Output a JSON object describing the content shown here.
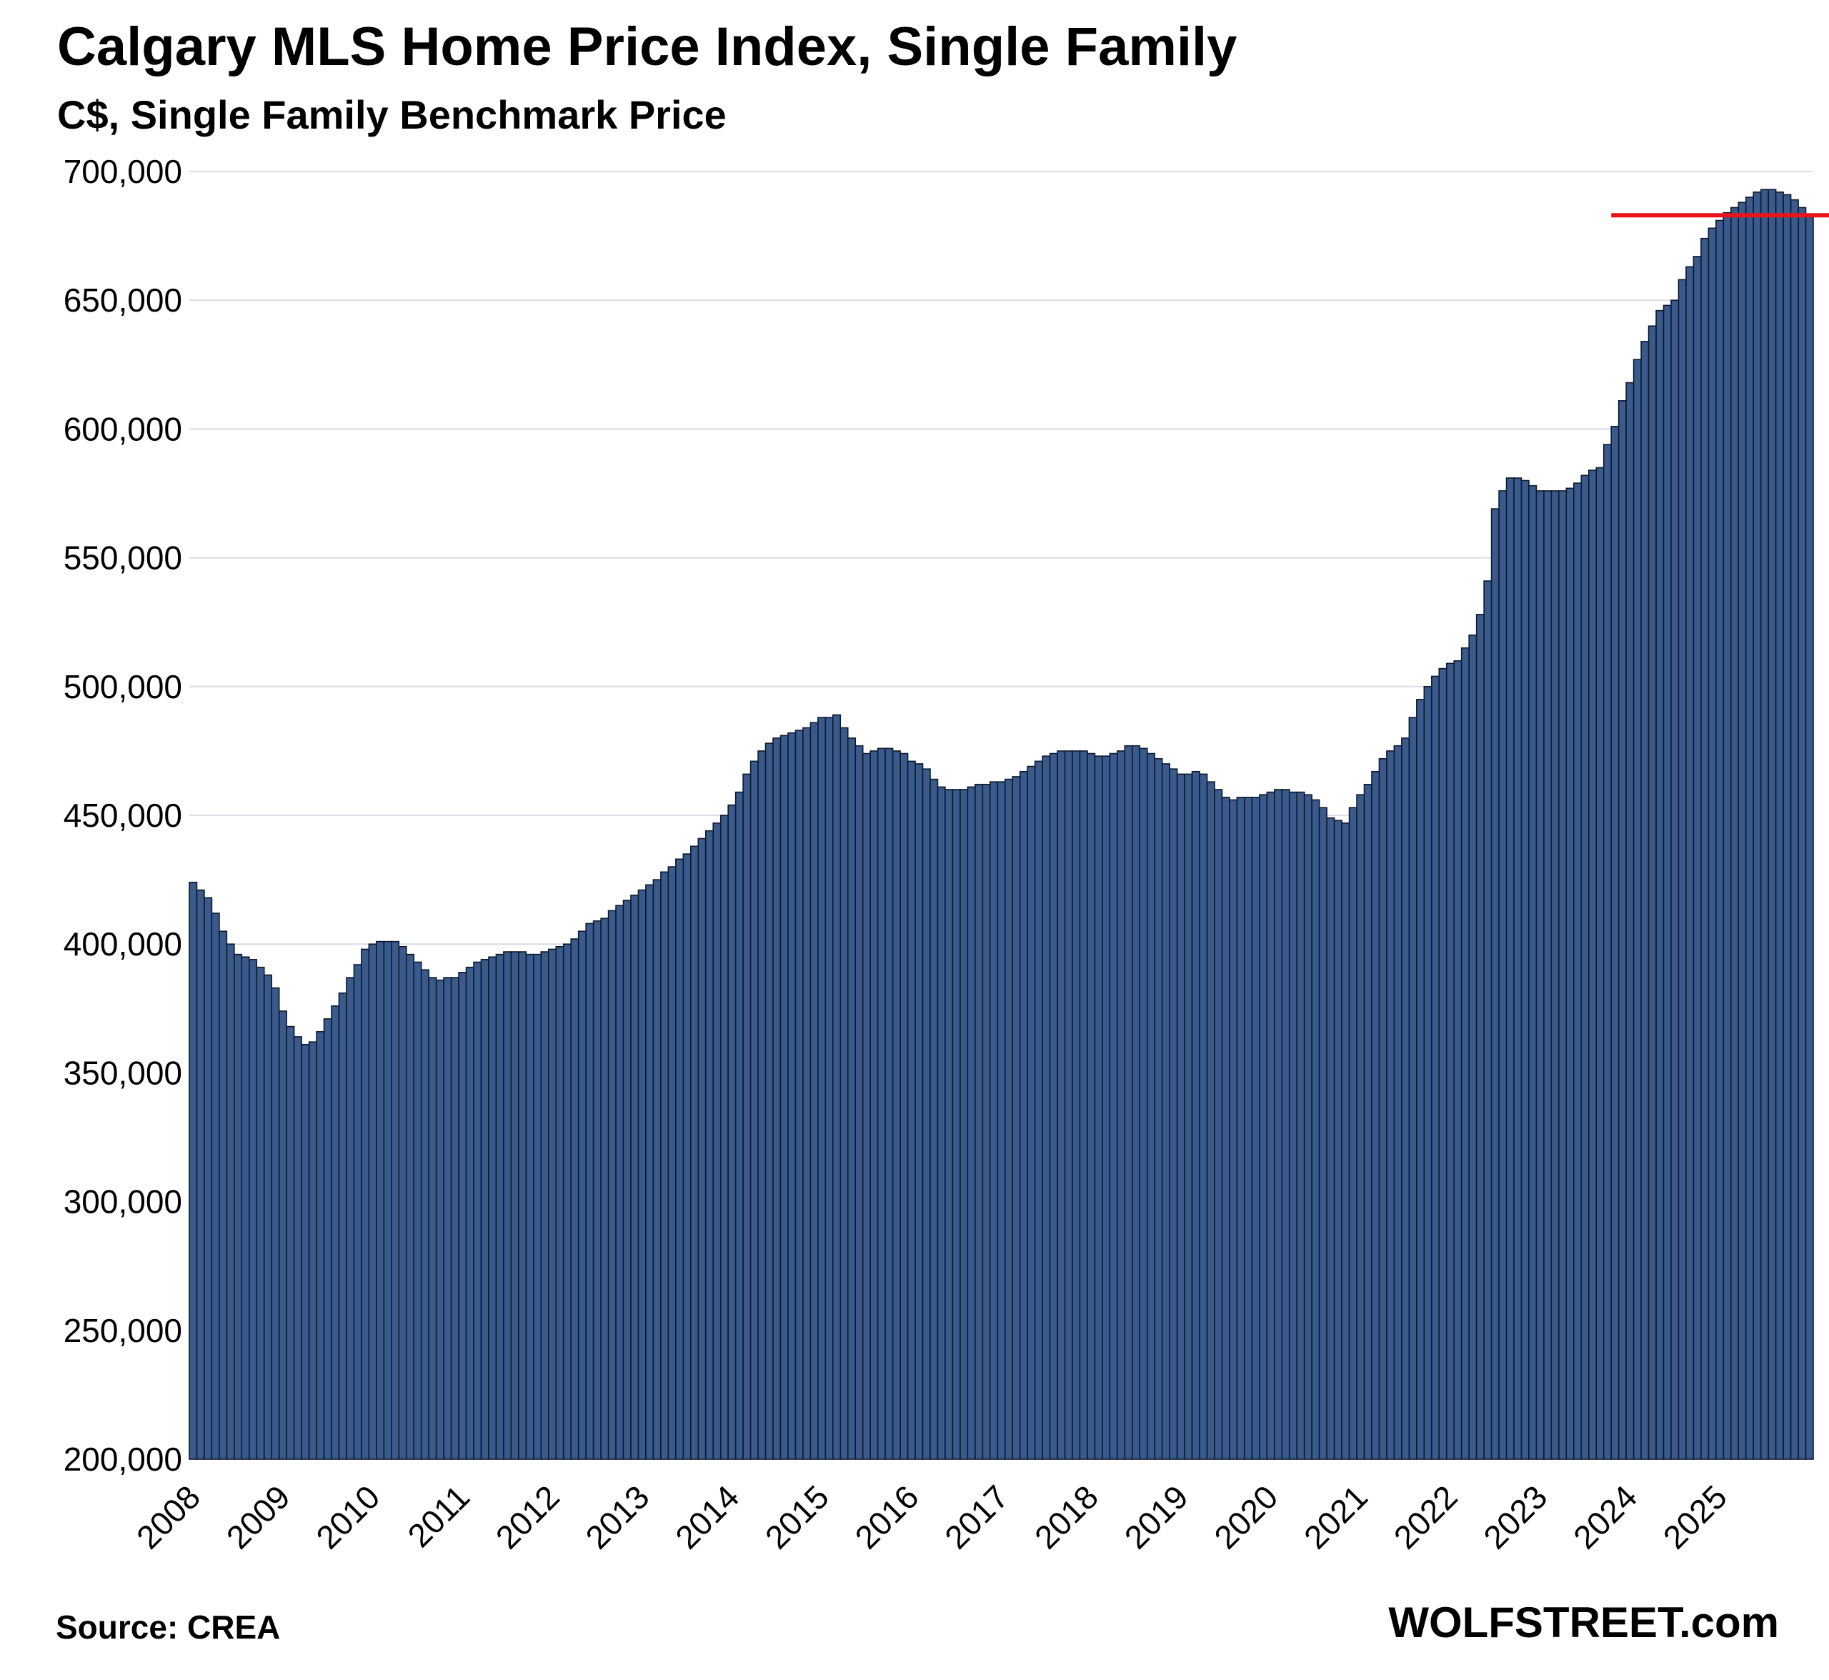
{
  "chart_data": {
    "type": "bar",
    "title": "Calgary MLS Home Price Index, Single Family",
    "subtitle": "C$, Single Family Benchmark Price",
    "xlabel": "",
    "ylabel": "",
    "ylim": [
      200000,
      700000
    ],
    "y_ticks": [
      "200,000",
      "250,000",
      "300,000",
      "350,000",
      "400,000",
      "450,000",
      "500,000",
      "550,000",
      "600,000",
      "650,000",
      "700,000"
    ],
    "y_tick_values": [
      200000,
      250000,
      300000,
      350000,
      400000,
      450000,
      500000,
      550000,
      600000,
      650000,
      700000
    ],
    "x_tick_labels": [
      "2008",
      "2009",
      "2010",
      "2011",
      "2012",
      "2013",
      "2014",
      "2015",
      "2016",
      "2017",
      "2018",
      "2019",
      "2020",
      "2021",
      "2022",
      "2023",
      "2024",
      "2025"
    ],
    "grid": "horizontal",
    "legend": "none",
    "bar_color": "#3a5a8c",
    "bar_edge_color": "#0d1a2e",
    "reference_line": {
      "value": 683000,
      "color": "#e8141c"
    },
    "x_start": "2008-01",
    "x_end": "2025-06",
    "values": [
      424000,
      421000,
      418000,
      412000,
      405000,
      400000,
      396000,
      395000,
      394000,
      391000,
      388000,
      383000,
      374000,
      368000,
      364000,
      361000,
      362000,
      366000,
      371000,
      376000,
      381000,
      387000,
      392000,
      398000,
      400000,
      401000,
      401000,
      401000,
      399000,
      396000,
      393000,
      390000,
      387000,
      386000,
      387000,
      387000,
      389000,
      391000,
      393000,
      394000,
      395000,
      396000,
      397000,
      397000,
      397000,
      396000,
      396000,
      397000,
      398000,
      399000,
      400000,
      402000,
      405000,
      408000,
      409000,
      410000,
      413000,
      415000,
      417000,
      419000,
      421000,
      423000,
      425000,
      428000,
      430000,
      433000,
      435000,
      438000,
      441000,
      444000,
      447000,
      450000,
      454000,
      459000,
      466000,
      471000,
      475000,
      478000,
      480000,
      481000,
      482000,
      483000,
      484000,
      486000,
      488000,
      488000,
      489000,
      484000,
      480000,
      477000,
      474000,
      475000,
      476000,
      476000,
      475000,
      474000,
      471000,
      470000,
      468000,
      464000,
      461000,
      460000,
      460000,
      460000,
      461000,
      462000,
      462000,
      463000,
      463000,
      464000,
      465000,
      467000,
      469000,
      471000,
      473000,
      474000,
      475000,
      475000,
      475000,
      475000,
      474000,
      473000,
      473000,
      474000,
      475000,
      477000,
      477000,
      476000,
      474000,
      472000,
      470000,
      468000,
      466000,
      466000,
      467000,
      466000,
      463000,
      460000,
      457000,
      456000,
      457000,
      457000,
      457000,
      458000,
      459000,
      460000,
      460000,
      459000,
      459000,
      458000,
      456000,
      453000,
      449000,
      448000,
      447000,
      453000,
      458000,
      462000,
      467000,
      472000,
      475000,
      477000,
      480000,
      488000,
      495000,
      500000,
      504000,
      507000,
      509000,
      510000,
      515000,
      520000,
      528000,
      541000,
      569000,
      576000,
      581000,
      581000,
      580000,
      578000,
      576000,
      576000,
      576000,
      576000,
      577000,
      579000,
      582000,
      584000,
      585000,
      594000,
      601000,
      611000,
      618000,
      627000,
      634000,
      640000,
      646000,
      648000,
      650000,
      658000,
      663000,
      667000,
      674000,
      678000,
      681000,
      684000,
      686000,
      688000,
      690000,
      692000,
      693000,
      693000,
      692000,
      691000,
      689000,
      686000,
      683000
    ]
  },
  "footer": {
    "source": "Source: CREA",
    "brand": "WOLFSTREET.com"
  }
}
